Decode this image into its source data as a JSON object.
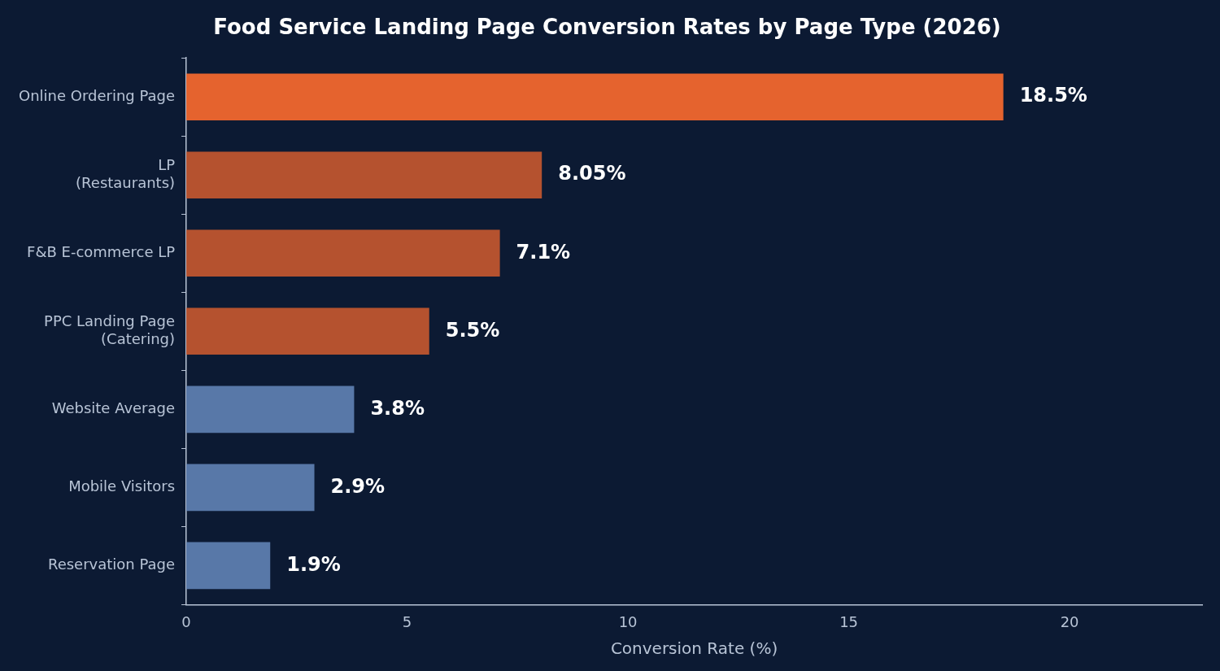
{
  "chart_data": {
    "type": "bar",
    "orientation": "horizontal",
    "title": "Food Service Landing Page Conversion Rates by Page Type (2026)",
    "xlabel": "Conversion Rate (%)",
    "categories": [
      "Online Ordering Page",
      "LP\n(Restaurants)",
      "F&B E-commerce LP",
      "PPC Landing Page\n(Catering)",
      "Website Average",
      "Mobile Visitors",
      "Reservation Page"
    ],
    "values": [
      18.5,
      8.05,
      7.1,
      5.5,
      3.8,
      2.9,
      1.9
    ],
    "colors": [
      "#e5632e",
      "#b5522f",
      "#b5522f",
      "#b5522f",
      "#5878a8",
      "#5878a8",
      "#5878a8"
    ],
    "value_labels": [
      "18.5%",
      "8.05%",
      "7.1%",
      "5.5%",
      "3.8%",
      "2.9%",
      "1.9%"
    ],
    "xlim": [
      0,
      23
    ],
    "xticks": [
      0,
      5,
      10,
      15,
      20
    ],
    "grid": false,
    "legend": false
  }
}
